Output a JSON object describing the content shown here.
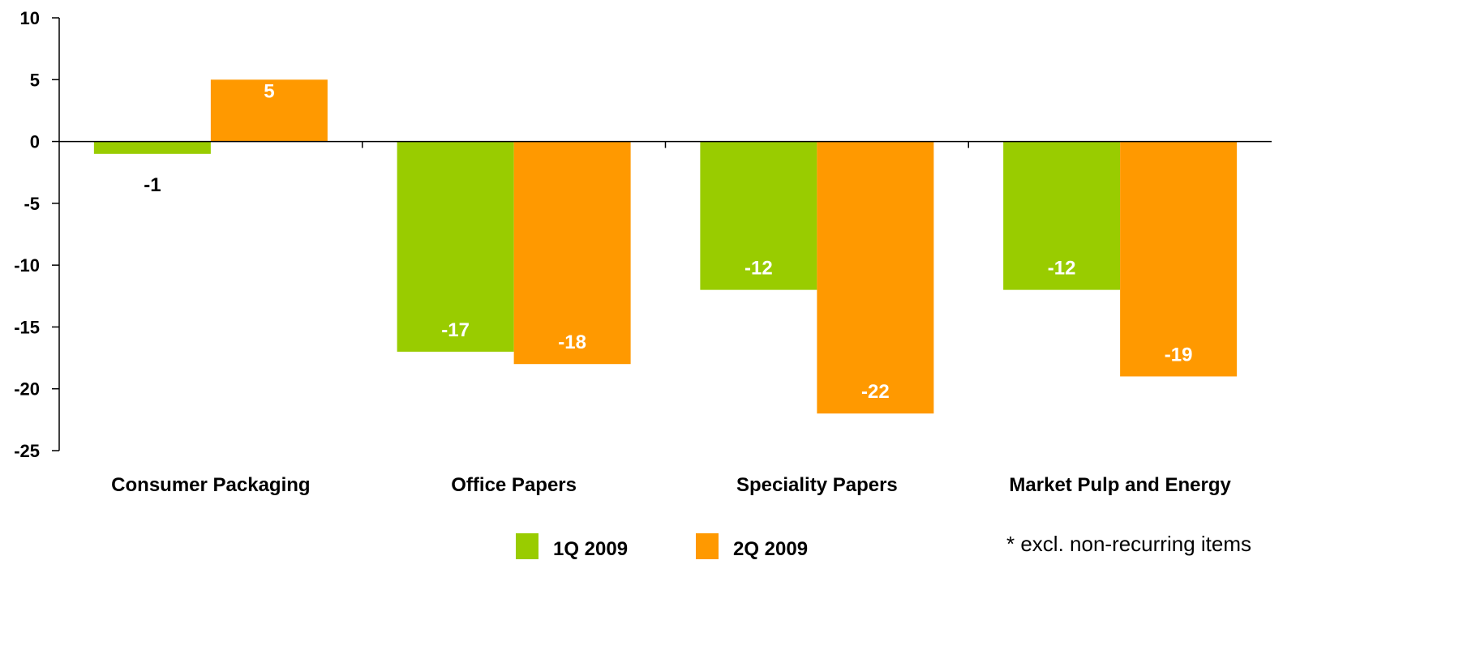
{
  "chart_data": {
    "type": "bar",
    "categories": [
      "Consumer Packaging",
      "Office Papers",
      "Speciality Papers",
      "Market Pulp and Energy"
    ],
    "series": [
      {
        "name": "1Q 2009",
        "values": [
          -1,
          -17,
          -12,
          -12
        ],
        "color": "#99cc00"
      },
      {
        "name": "2Q 2009",
        "values": [
          5,
          -18,
          -22,
          -19
        ],
        "color": "#ff9900"
      }
    ],
    "ylim": [
      -25,
      10
    ],
    "yticks": [
      10,
      5,
      0,
      -5,
      -10,
      -15,
      -20,
      -25
    ],
    "grid": false,
    "legend": "bottom-center",
    "footnote": "* excl. non-recurring items"
  }
}
